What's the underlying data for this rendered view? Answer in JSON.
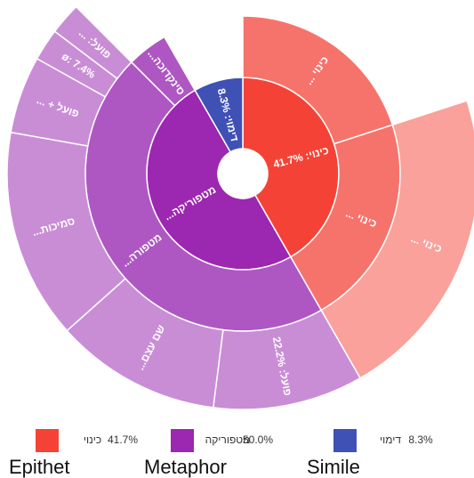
{
  "chart_data": {
    "type": "sunburst",
    "nodes": [
      {
        "name": "כינוי",
        "label": "כינוי: 41.7%",
        "value": 41.7,
        "value_label": "41.7%",
        "caption": "Epithet",
        "color": "#f44336",
        "children": [
          {
            "label": "כינוי ...",
            "value": 20,
            "color": "#f6736b"
          },
          {
            "label": "כינוי ...",
            "value": 21.7,
            "color": "#f6736b",
            "children": [
              {
                "label": "כינוי ...",
                "value": 21.7,
                "color": "#f9a19a"
              }
            ]
          }
        ]
      },
      {
        "name": "מטפוריקה",
        "label": "מטפוריקה...",
        "value": 50.0,
        "value_label": "50.0%",
        "caption": "Metaphor",
        "color": "#9c27b0",
        "children": [
          {
            "label": "מטפורה...",
            "value": 45.8,
            "color": "#ae57c3",
            "children": [
              {
                "label": "פועל: 22.2%",
                "value": 10.3,
                "color": "#c98dd6"
              },
              {
                "label": "שם עצם...",
                "value": 11.4,
                "color": "#c98dd6"
              },
              {
                "label": "סמיכות...",
                "value": 14.4,
                "color": "#c98dd6"
              },
              {
                "label": "פועל + ...",
                "value": 5.3,
                "color": "#c98dd6"
              },
              {
                "label": "ø: 7.4%",
                "value": 2.2,
                "color": "#c98dd6"
              },
              {
                "label": "פועל: ...",
                "value": 2.2,
                "color": "#c98dd6"
              }
            ]
          },
          {
            "label": "סינקדוכה...",
            "value": 4.2,
            "color": "#ae57c3"
          }
        ]
      },
      {
        "name": "דימוי",
        "label": "דימוי: 8.3%",
        "value": 8.3,
        "value_label": "8.3%",
        "caption": "Simile",
        "color": "#3f51b5"
      }
    ]
  }
}
